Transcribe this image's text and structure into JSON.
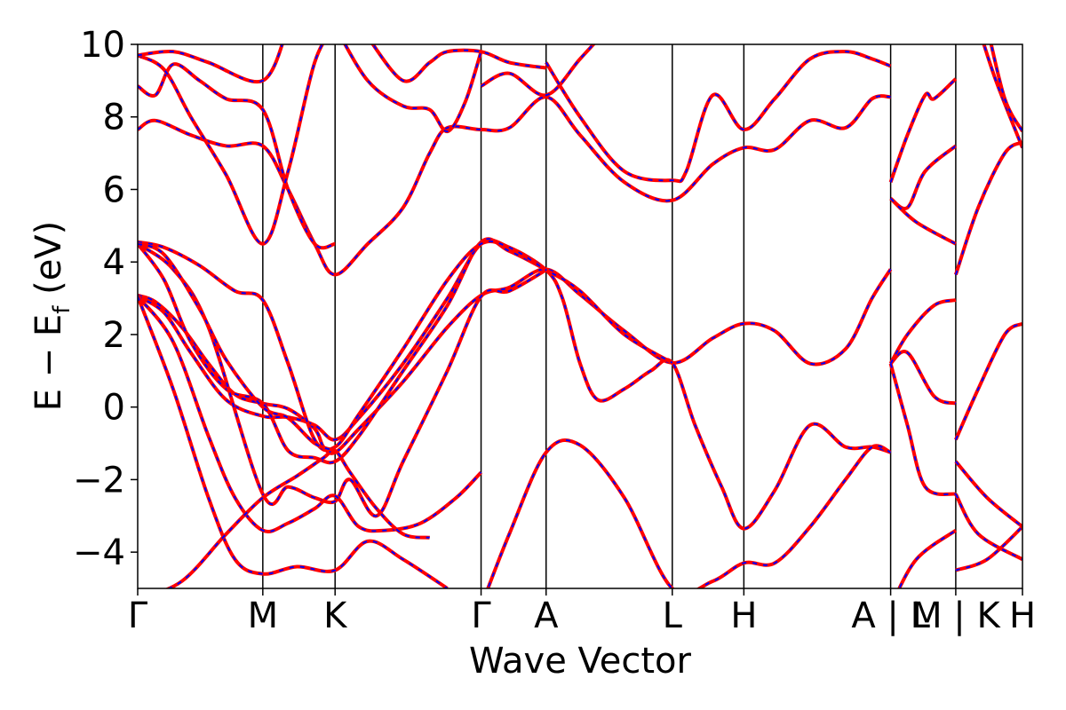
{
  "chart_data": {
    "type": "line",
    "xlabel": "Wave Vector",
    "ylabel": "E − E",
    "ylabel_subscript": "f",
    "ylabel_unit": " (eV)",
    "ylim": [
      -5,
      10
    ],
    "yticks": [
      -4,
      -2,
      0,
      2,
      4,
      6,
      8,
      10
    ],
    "ytick_labels": [
      "−4",
      "−2",
      "0",
      "2",
      "4",
      "6",
      "8",
      "10"
    ],
    "xlim": [
      0,
      1
    ],
    "kpoints": [
      {
        "label": "Γ",
        "x": 0.0
      },
      {
        "label": "M",
        "x": 0.1414
      },
      {
        "label": "K",
        "x": 0.2231
      },
      {
        "label": "Γ",
        "x": 0.3881
      },
      {
        "label": "A",
        "x": 0.4616
      },
      {
        "label": "L",
        "x": 0.6042
      },
      {
        "label": "H",
        "x": 0.6851
      },
      {
        "label": "A | L",
        "x": 0.851
      },
      {
        "label": "M | K",
        "x": 0.9246
      },
      {
        "label": "H",
        "x": 1.0
      }
    ],
    "line_styles": {
      "solid_color": "#ff0000",
      "dashed_color": "#0000ff"
    },
    "series": [
      {
        "values": [
          [
            0.0,
            3.08
          ],
          [
            0.02,
            2.9
          ],
          [
            0.05,
            2.2
          ],
          [
            0.08,
            1.2
          ],
          [
            0.11,
            0.35
          ],
          [
            0.1414,
            0.1
          ],
          [
            0.17,
            -0.05
          ],
          [
            0.2,
            -0.6
          ],
          [
            0.21,
            -1.1
          ],
          [
            0.2231,
            -1.25
          ],
          [
            0.25,
            -0.6
          ],
          [
            0.3,
            0.7
          ],
          [
            0.35,
            2.2
          ],
          [
            0.3881,
            3.08
          ],
          [
            0.42,
            3.3
          ],
          [
            0.4616,
            3.8
          ],
          [
            0.5,
            3.1
          ],
          [
            0.55,
            2.1
          ],
          [
            0.6042,
            1.22
          ],
          [
            0.65,
            1.9
          ],
          [
            0.6851,
            2.3
          ],
          [
            0.72,
            2.1
          ],
          [
            0.76,
            1.2
          ],
          [
            0.8,
            1.6
          ],
          [
            0.83,
            3.0
          ],
          [
            0.851,
            3.8
          ]
        ]
      },
      {
        "values": [
          [
            0.0,
            3.05
          ],
          [
            0.03,
            2.6
          ],
          [
            0.06,
            1.5
          ],
          [
            0.1,
            0.2
          ],
          [
            0.1414,
            -0.25
          ],
          [
            0.17,
            -0.28
          ],
          [
            0.2,
            -0.5
          ],
          [
            0.2231,
            -0.9
          ],
          [
            0.25,
            -0.3
          ],
          [
            0.3,
            1.2
          ],
          [
            0.35,
            3.0
          ],
          [
            0.3881,
            4.5
          ],
          [
            0.42,
            4.4
          ],
          [
            0.4616,
            3.78
          ],
          [
            0.48,
            3.0
          ],
          [
            0.5,
            1.2
          ],
          [
            0.52,
            0.2
          ],
          [
            0.55,
            0.5
          ],
          [
            0.58,
            1.0
          ],
          [
            0.6042,
            1.22
          ],
          [
            0.63,
            -0.5
          ],
          [
            0.66,
            -2.2
          ],
          [
            0.6851,
            -3.35
          ],
          [
            0.72,
            -2.3
          ],
          [
            0.76,
            -0.5
          ],
          [
            0.8,
            -1.1
          ],
          [
            0.83,
            -1.1
          ],
          [
            0.851,
            -1.25
          ]
        ]
      },
      {
        "values": [
          [
            0.0,
            4.5
          ],
          [
            0.03,
            3.5
          ],
          [
            0.06,
            1.8
          ],
          [
            0.1,
            0.5
          ],
          [
            0.1414,
            0.1
          ],
          [
            0.17,
            -1.2
          ],
          [
            0.2,
            -1.4
          ],
          [
            0.2231,
            -1.5
          ],
          [
            0.25,
            -0.8
          ],
          [
            0.3,
            1.0
          ],
          [
            0.35,
            2.8
          ],
          [
            0.3881,
            4.55
          ],
          [
            0.42,
            4.3
          ],
          [
            0.4616,
            3.78
          ],
          [
            0.5,
            3.2
          ],
          [
            0.55,
            2.0
          ],
          [
            0.6042,
            1.22
          ]
        ]
      },
      {
        "values": [
          [
            0.0,
            4.55
          ],
          [
            0.03,
            4.4
          ],
          [
            0.07,
            3.9
          ],
          [
            0.11,
            3.2
          ],
          [
            0.1414,
            2.95
          ],
          [
            0.17,
            1.2
          ],
          [
            0.2,
            -0.9
          ],
          [
            0.2231,
            -1.1
          ],
          [
            0.25,
            -0.2
          ],
          [
            0.3,
            1.6
          ],
          [
            0.35,
            3.5
          ],
          [
            0.3881,
            4.5
          ],
          [
            0.42,
            4.4
          ],
          [
            0.46,
            3.8
          ]
        ]
      },
      {
        "values": [
          [
            0.0,
            4.5
          ],
          [
            0.04,
            3.8
          ],
          [
            0.08,
            2.2
          ],
          [
            0.1414,
            -2.4
          ],
          [
            0.17,
            -2.2
          ],
          [
            0.2,
            -2.5
          ],
          [
            0.2231,
            -2.6
          ],
          [
            0.24,
            -2.0
          ],
          [
            0.27,
            -3.0
          ],
          [
            0.3,
            -1.5
          ],
          [
            0.35,
            1.0
          ],
          [
            0.3881,
            3.05
          ],
          [
            0.42,
            3.2
          ],
          [
            0.4616,
            3.78
          ]
        ]
      },
      {
        "values": [
          [
            0.0,
            3.05
          ],
          [
            0.04,
            1.8
          ],
          [
            0.08,
            -0.8
          ],
          [
            0.11,
            -2.5
          ],
          [
            0.1414,
            -3.4
          ],
          [
            0.17,
            -3.2
          ],
          [
            0.2,
            -2.8
          ],
          [
            0.2231,
            -2.45
          ],
          [
            0.25,
            -3.3
          ],
          [
            0.28,
            -3.4
          ],
          [
            0.32,
            -3.2
          ],
          [
            0.36,
            -2.5
          ],
          [
            0.3881,
            -1.8
          ]
        ]
      },
      {
        "values": [
          [
            0.0,
            3.05
          ],
          [
            0.04,
            0.5
          ],
          [
            0.08,
            -2.5
          ],
          [
            0.11,
            -4.2
          ],
          [
            0.1414,
            -4.6
          ],
          [
            0.18,
            -4.4
          ],
          [
            0.2231,
            -4.5
          ],
          [
            0.26,
            -3.7
          ],
          [
            0.3,
            -4.2
          ],
          [
            0.35,
            -5.0
          ]
        ]
      },
      {
        "values": [
          [
            0.0,
            -5.3
          ],
          [
            0.05,
            -4.8
          ],
          [
            0.1,
            -3.5
          ],
          [
            0.1414,
            -2.5
          ],
          [
            0.18,
            -1.9
          ],
          [
            0.21,
            -1.4
          ],
          [
            0.2231,
            -1.2
          ],
          [
            0.24,
            -1.8
          ],
          [
            0.27,
            -2.8
          ],
          [
            0.3,
            -3.5
          ],
          [
            0.33,
            -3.6
          ]
        ]
      },
      {
        "values": [
          [
            0.0,
            4.5
          ],
          [
            0.03,
            4.2
          ],
          [
            0.07,
            2.7
          ],
          [
            0.1,
            1.3
          ],
          [
            0.1414,
            0.0
          ],
          [
            0.17,
            -0.3
          ],
          [
            0.2,
            -1.0
          ],
          [
            0.2231,
            -1.2
          ]
        ]
      },
      {
        "values": [
          [
            0.0,
            7.65
          ],
          [
            0.02,
            7.9
          ],
          [
            0.06,
            7.5
          ],
          [
            0.1,
            7.2
          ],
          [
            0.1414,
            7.2
          ],
          [
            0.17,
            6.0
          ],
          [
            0.2,
            4.5
          ],
          [
            0.2231,
            3.65
          ],
          [
            0.26,
            4.5
          ],
          [
            0.3,
            5.5
          ],
          [
            0.33,
            7.0
          ],
          [
            0.35,
            7.7
          ],
          [
            0.3881,
            7.65
          ],
          [
            0.42,
            7.7
          ],
          [
            0.4616,
            8.55
          ],
          [
            0.5,
            7.5
          ],
          [
            0.55,
            6.2
          ],
          [
            0.6042,
            5.7
          ],
          [
            0.65,
            6.7
          ],
          [
            0.6851,
            7.15
          ],
          [
            0.72,
            7.1
          ],
          [
            0.76,
            7.9
          ],
          [
            0.8,
            7.7
          ],
          [
            0.83,
            8.5
          ],
          [
            0.851,
            8.55
          ]
        ]
      },
      {
        "values": [
          [
            0.0,
            8.85
          ],
          [
            0.02,
            8.6
          ],
          [
            0.04,
            9.45
          ],
          [
            0.07,
            9.0
          ],
          [
            0.1,
            8.5
          ],
          [
            0.1414,
            8.2
          ],
          [
            0.17,
            6.0
          ],
          [
            0.2,
            4.5
          ],
          [
            0.2231,
            4.5
          ]
        ]
      },
      {
        "values": [
          [
            0.0,
            9.7
          ],
          [
            0.03,
            9.3
          ],
          [
            0.06,
            8.0
          ],
          [
            0.1,
            6.4
          ],
          [
            0.1414,
            4.5
          ],
          [
            0.17,
            6.5
          ],
          [
            0.2,
            9.5
          ],
          [
            0.2231,
            10.5
          ]
        ]
      },
      {
        "values": [
          [
            0.0,
            9.7
          ],
          [
            0.04,
            9.8
          ],
          [
            0.08,
            9.5
          ],
          [
            0.1414,
            9.0
          ],
          [
            0.17,
            10.5
          ]
        ]
      },
      {
        "values": [
          [
            0.2231,
            10.5
          ],
          [
            0.26,
            9.0
          ],
          [
            0.3,
            8.3
          ],
          [
            0.33,
            8.2
          ],
          [
            0.35,
            7.6
          ],
          [
            0.37,
            8.4
          ],
          [
            0.3881,
            9.8
          ]
        ]
      },
      {
        "values": [
          [
            0.26,
            10.2
          ],
          [
            0.3,
            9.0
          ],
          [
            0.33,
            9.5
          ],
          [
            0.35,
            9.8
          ],
          [
            0.3881,
            9.8
          ],
          [
            0.42,
            9.5
          ],
          [
            0.4616,
            9.35
          ]
        ]
      },
      {
        "values": [
          [
            0.3881,
            8.85
          ],
          [
            0.42,
            9.2
          ],
          [
            0.4616,
            8.6
          ],
          [
            0.5,
            9.6
          ],
          [
            0.53,
            10.4
          ]
        ]
      },
      {
        "values": [
          [
            0.4616,
            9.5
          ],
          [
            0.5,
            8.0
          ],
          [
            0.55,
            6.5
          ],
          [
            0.6042,
            6.25
          ],
          [
            0.62,
            6.5
          ],
          [
            0.65,
            8.6
          ],
          [
            0.6851,
            7.65
          ],
          [
            0.72,
            8.5
          ],
          [
            0.76,
            9.6
          ],
          [
            0.8,
            9.8
          ],
          [
            0.83,
            9.6
          ],
          [
            0.851,
            9.4
          ]
        ]
      },
      {
        "values": [
          [
            0.3881,
            -5.5
          ],
          [
            0.42,
            -3.5
          ],
          [
            0.4616,
            -1.25
          ],
          [
            0.5,
            -1.05
          ],
          [
            0.55,
            -2.5
          ],
          [
            0.6042,
            -5.0
          ],
          [
            0.65,
            -4.8
          ],
          [
            0.6851,
            -4.3
          ],
          [
            0.72,
            -4.3
          ],
          [
            0.76,
            -3.3
          ],
          [
            0.8,
            -2.0
          ],
          [
            0.83,
            -1.1
          ],
          [
            0.851,
            -1.25
          ]
        ]
      },
      {
        "values": [
          [
            0.851,
            6.2
          ],
          [
            0.87,
            7.5
          ],
          [
            0.89,
            8.6
          ],
          [
            0.9,
            8.5
          ],
          [
            0.9246,
            9.05
          ]
        ]
      },
      {
        "values": [
          [
            0.851,
            5.75
          ],
          [
            0.87,
            5.5
          ],
          [
            0.89,
            6.5
          ],
          [
            0.9246,
            7.2
          ]
        ]
      },
      {
        "values": [
          [
            0.851,
            5.75
          ],
          [
            0.88,
            5.1
          ],
          [
            0.9246,
            4.5
          ]
        ]
      },
      {
        "values": [
          [
            0.851,
            1.2
          ],
          [
            0.87,
            1.5
          ],
          [
            0.9,
            0.3
          ],
          [
            0.9246,
            0.1
          ]
        ]
      },
      {
        "values": [
          [
            0.851,
            1.2
          ],
          [
            0.87,
            2.0
          ],
          [
            0.9,
            2.8
          ],
          [
            0.9246,
            2.95
          ]
        ]
      },
      {
        "values": [
          [
            0.851,
            1.2
          ],
          [
            0.87,
            -0.5
          ],
          [
            0.89,
            -2.2
          ],
          [
            0.9246,
            -2.4
          ]
        ]
      },
      {
        "values": [
          [
            0.851,
            -5.5
          ],
          [
            0.88,
            -4.2
          ],
          [
            0.9246,
            -3.4
          ]
        ]
      },
      {
        "values": [
          [
            0.9246,
            3.65
          ],
          [
            0.95,
            5.5
          ],
          [
            0.98,
            7.0
          ],
          [
            1.0,
            7.3
          ]
        ]
      },
      {
        "values": [
          [
            0.9246,
            -0.9
          ],
          [
            0.95,
            0.5
          ],
          [
            0.98,
            2.0
          ],
          [
            1.0,
            2.3
          ]
        ]
      },
      {
        "values": [
          [
            0.9246,
            -1.5
          ],
          [
            0.96,
            -2.5
          ],
          [
            1.0,
            -3.3
          ]
        ]
      },
      {
        "values": [
          [
            0.9246,
            -4.5
          ],
          [
            0.96,
            -4.2
          ],
          [
            1.0,
            -3.3
          ]
        ]
      },
      {
        "values": [
          [
            0.9246,
            -2.4
          ],
          [
            0.95,
            -3.5
          ],
          [
            1.0,
            -4.2
          ]
        ]
      },
      {
        "values": [
          [
            0.95,
            10.5
          ],
          [
            0.97,
            9.0
          ],
          [
            1.0,
            7.15
          ]
        ]
      },
      {
        "values": [
          [
            0.96,
            10.5
          ],
          [
            0.98,
            8.5
          ],
          [
            1.0,
            7.6
          ]
        ]
      }
    ]
  }
}
